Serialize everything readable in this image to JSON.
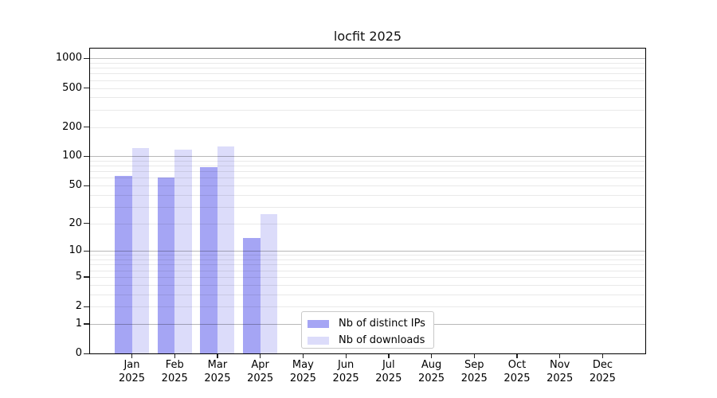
{
  "chart_data": {
    "type": "bar",
    "title": "locfit 2025",
    "y_scale": "log1p",
    "grid": true,
    "categories": [
      "Jan",
      "Feb",
      "Mar",
      "Apr",
      "May",
      "Jun",
      "Jul",
      "Aug",
      "Sep",
      "Oct",
      "Nov",
      "Dec"
    ],
    "x_tick_second_line": "2025",
    "series": [
      {
        "name": "Nb of distinct IPs",
        "color": "#a5a5f4",
        "values": [
          63,
          61,
          77,
          14,
          0,
          0,
          0,
          0,
          0,
          0,
          0,
          0
        ]
      },
      {
        "name": "Nb of downloads",
        "color": "#dcdcfa",
        "values": [
          122,
          117,
          126,
          25,
          0,
          0,
          0,
          0,
          0,
          0,
          0,
          0
        ]
      }
    ],
    "y_ticks": [
      0,
      1,
      2,
      5,
      10,
      20,
      50,
      100,
      200,
      500,
      1000
    ],
    "y_major_gridlines": [
      1,
      10,
      100,
      1000
    ],
    "ylim": [
      0,
      1260
    ],
    "legend_position": "bottom-center"
  }
}
